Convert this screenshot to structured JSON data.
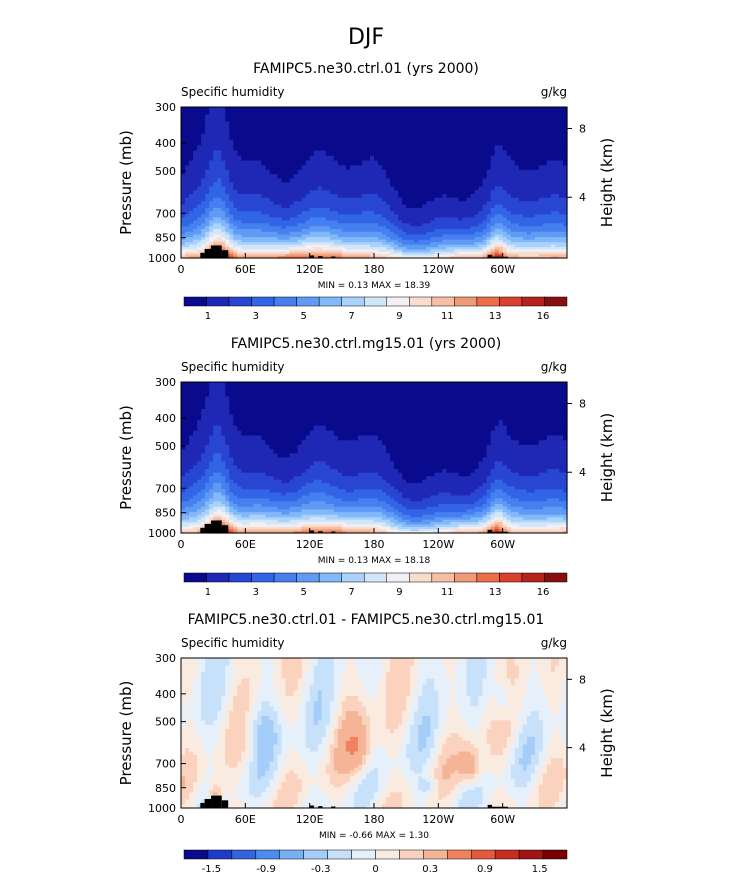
{
  "page_title": "DJF",
  "colors": {
    "diff_levels": [
      "#0a0a8c",
      "#1e3cc8",
      "#3264dc",
      "#4b8cf0",
      "#78aff5",
      "#a5cdfa",
      "#c8e1fa",
      "#e6f0fa",
      "#faebe1",
      "#fad2be",
      "#f5b496",
      "#f0825f",
      "#e65a3c",
      "#c82d1e",
      "#a01414",
      "#780000"
    ],
    "humidity_levels": [
      "#0a0a8c",
      "#1e28b4",
      "#2846d2",
      "#3264e6",
      "#4680f0",
      "#5f9bf5",
      "#82b9fa",
      "#aad2fa",
      "#d2e6fa",
      "#f0f0f5",
      "#fadccd",
      "#f5bea5",
      "#f09b78",
      "#eb6e46",
      "#d7412d",
      "#b4231e",
      "#870f0f"
    ],
    "topography": "#000000"
  },
  "chart_data": [
    {
      "type": "heatmap",
      "title": "FAMIPC5.ne30.ctrl.01 (yrs 2000)",
      "field_label": "Specific humidity",
      "units": "g/kg",
      "ylabel": "Pressure (mb)",
      "ylabel_right": "Height (km)",
      "x_ticks": [
        "0",
        "60E",
        "120E",
        "180",
        "120W",
        "60W"
      ],
      "y_ticks": [
        "300",
        "400",
        "500",
        "700",
        "850",
        "1000"
      ],
      "right_ticks": [
        "8",
        "4"
      ],
      "ylim": [
        1000,
        300
      ],
      "min_text": "MIN =     0.13   MAX =   18.39",
      "min": 0.13,
      "max": 18.39,
      "colorbar_labels": [
        "1",
        "3",
        "5",
        "7",
        "9",
        "11",
        "13",
        "16"
      ]
    },
    {
      "type": "heatmap",
      "title": "FAMIPC5.ne30.ctrl.mg15.01 (yrs 2000)",
      "field_label": "Specific humidity",
      "units": "g/kg",
      "ylabel": "Pressure (mb)",
      "ylabel_right": "Height (km)",
      "x_ticks": [
        "0",
        "60E",
        "120E",
        "180",
        "120W",
        "60W"
      ],
      "y_ticks": [
        "300",
        "400",
        "500",
        "700",
        "850",
        "1000"
      ],
      "right_ticks": [
        "8",
        "4"
      ],
      "ylim": [
        1000,
        300
      ],
      "min_text": "MIN =     0.13   MAX =   18.18",
      "min": 0.13,
      "max": 18.18,
      "colorbar_labels": [
        "1",
        "3",
        "5",
        "7",
        "9",
        "11",
        "13",
        "16"
      ]
    },
    {
      "type": "heatmap",
      "title": "FAMIPC5.ne30.ctrl.01 - FAMIPC5.ne30.ctrl.mg15.01",
      "field_label": "Specific humidity",
      "units": "g/kg",
      "ylabel": "Pressure (mb)",
      "ylabel_right": "Height (km)",
      "x_ticks": [
        "0",
        "60E",
        "120E",
        "180",
        "120W",
        "60W"
      ],
      "y_ticks": [
        "300",
        "400",
        "500",
        "700",
        "850",
        "1000"
      ],
      "right_ticks": [
        "8",
        "4"
      ],
      "ylim": [
        1000,
        300
      ],
      "min_text": "MIN =   -0.66   MAX =    1.30",
      "min": -0.66,
      "max": 1.3,
      "colorbar_labels": [
        "-1.5",
        "-0.9",
        "-0.3",
        "0",
        "0.3",
        "0.9",
        "1.5"
      ]
    }
  ]
}
